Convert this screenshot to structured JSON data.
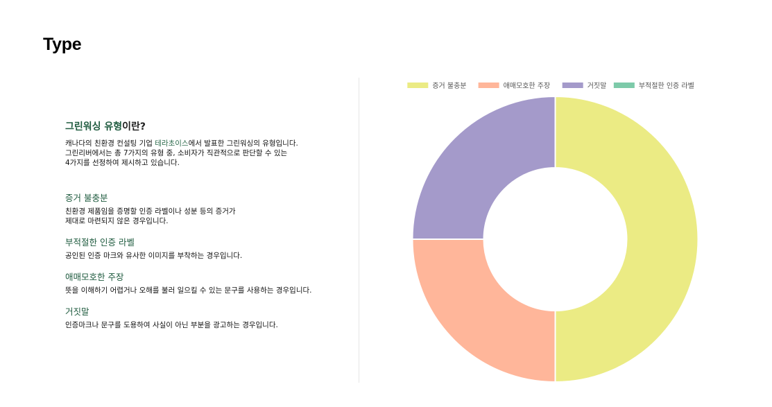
{
  "page": {
    "title": "Type"
  },
  "info": {
    "heading_accent": "그린워싱 유형",
    "heading_rest": "이란?",
    "intro_part1": "캐나다의 친환경 컨설팅 기업 ",
    "intro_brand": "테라초이스",
    "intro_part2": "에서 발표한 그린워싱의 유형입니다.",
    "intro_line2": "그린리버에서는 총 7가지의 유형 중, 소비자가 직관적으로 판단할 수 있는",
    "intro_line3": "4가지를 선정하여 제시하고 있습니다."
  },
  "types": [
    {
      "name": "증거 불충분",
      "desc_line1": "친환경 제품임을 증명할 인증 라벨이나 성분 등의 증거가",
      "desc_line2": "제대로 마련되지 않은 경우입니다."
    },
    {
      "name": "부적절한 인증 라벨",
      "desc_line1": "공인된 인증 마크와 유사한 이미지를 부착하는 경우입니다.",
      "desc_line2": ""
    },
    {
      "name": "애매모호한 주장",
      "desc_line1": "뜻을 이해하기 어렵거나 오해를 불러 일으킬 수 있는 문구를 사용하는 경우입니다.",
      "desc_line2": ""
    },
    {
      "name": "거짓말",
      "desc_line1": "인증마크나 문구를 도용하여 사실이 아닌 부분을 광고하는 경우입니다.",
      "desc_line2": ""
    }
  ],
  "chart_data": {
    "type": "pie",
    "donut": true,
    "title": "",
    "legend_position": "top",
    "series": [
      {
        "name": "증거 불충분",
        "value": 50,
        "color": "#ebeb84"
      },
      {
        "name": "애매모호한 주장",
        "value": 25,
        "color": "#ffb69a"
      },
      {
        "name": "거짓말",
        "value": 25,
        "color": "#a49aca"
      },
      {
        "name": "부적절한 인증 라벨",
        "value": 0,
        "color": "#7dcaa9"
      }
    ]
  }
}
